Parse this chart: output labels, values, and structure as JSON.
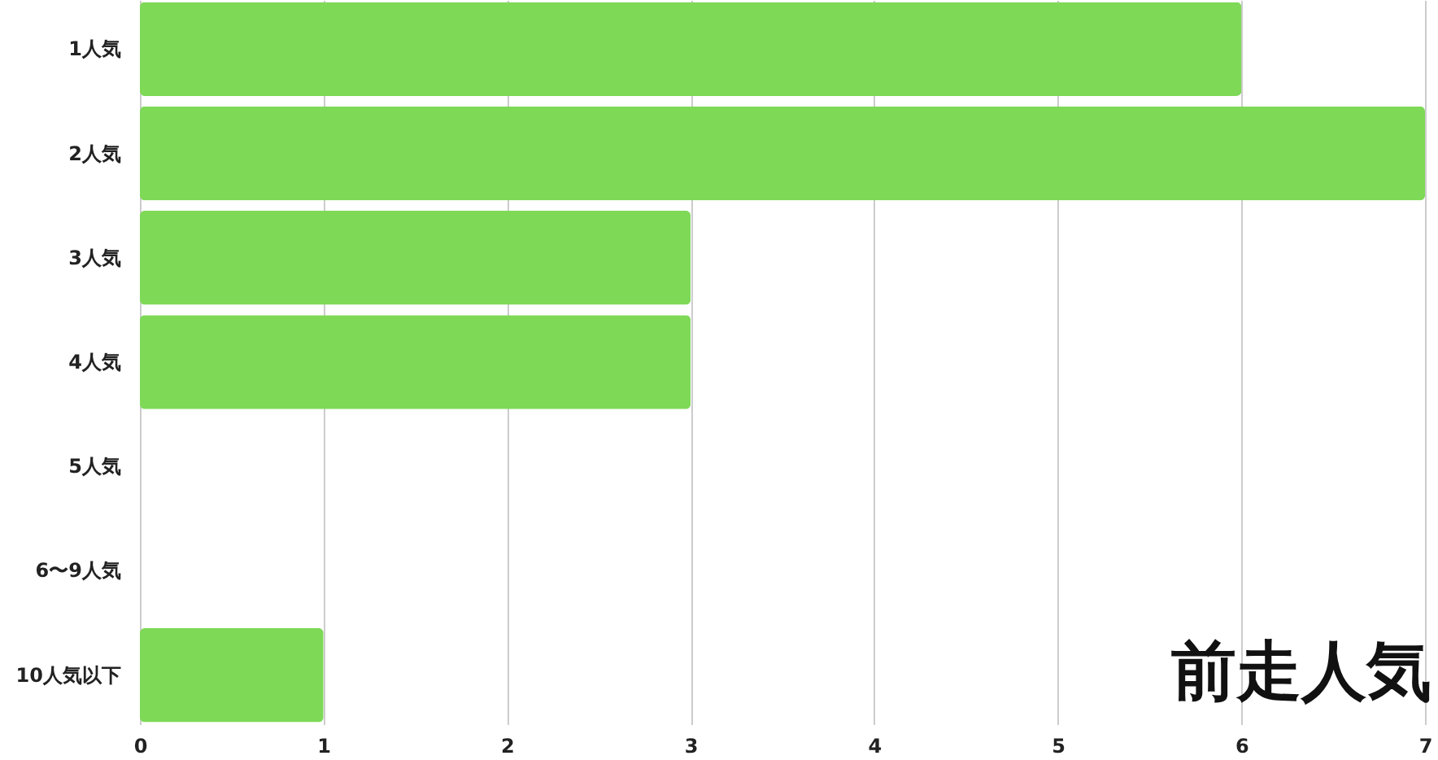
{
  "chart_data": {
    "type": "bar",
    "orientation": "horizontal",
    "title": "前走人気",
    "categories": [
      "1人気",
      "2人気",
      "3人気",
      "4人気",
      "5人気",
      "6〜9人気",
      "10人気以下"
    ],
    "values": [
      6,
      7,
      3,
      3,
      0,
      0,
      1
    ],
    "color": "#7ed957",
    "xlim": [
      0,
      7
    ],
    "xticks": [
      0,
      1,
      2,
      3,
      4,
      5,
      6,
      7
    ],
    "grid": "x"
  }
}
